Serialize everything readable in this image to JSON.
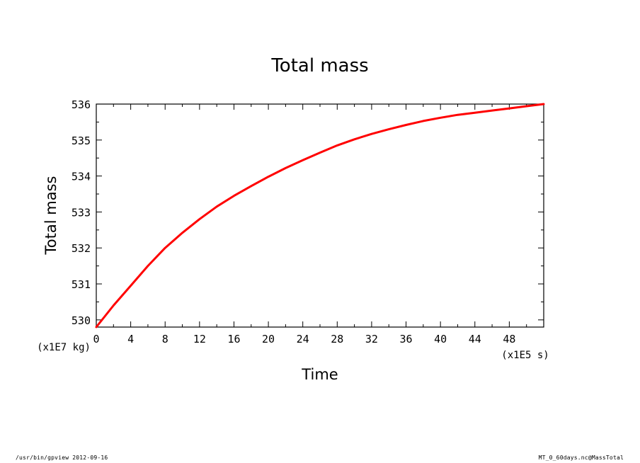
{
  "chart_data": {
    "type": "line",
    "title": "Total mass",
    "xlabel": "Time",
    "ylabel": "Total mass",
    "x_unit": "(x1E5 s)",
    "y_unit": "(x1E7 kg)",
    "xlim": [
      0,
      52
    ],
    "ylim": [
      529.8,
      536
    ],
    "xticks": [
      0,
      4,
      8,
      12,
      16,
      20,
      24,
      28,
      32,
      36,
      40,
      44,
      48
    ],
    "yticks": [
      530,
      531,
      532,
      533,
      534,
      535,
      536
    ],
    "grid": false,
    "series": [
      {
        "color": "#ff0000",
        "x": [
          0,
          2,
          4,
          6,
          8,
          10,
          12,
          14,
          16,
          18,
          20,
          22,
          24,
          26,
          28,
          30,
          32,
          34,
          36,
          38,
          40,
          42,
          44,
          46,
          48,
          50,
          52
        ],
        "y": [
          529.8,
          530.4,
          530.95,
          531.5,
          532.0,
          532.42,
          532.8,
          533.15,
          533.45,
          533.72,
          533.98,
          534.22,
          534.44,
          534.65,
          534.85,
          535.02,
          535.17,
          535.3,
          535.42,
          535.53,
          535.62,
          535.7,
          535.76,
          535.82,
          535.88,
          535.94,
          536.0
        ]
      }
    ]
  },
  "footer": {
    "left": "/usr/bin/gpview   2012-09-16",
    "right": "MT_0_60days.nc@MassTotal"
  }
}
